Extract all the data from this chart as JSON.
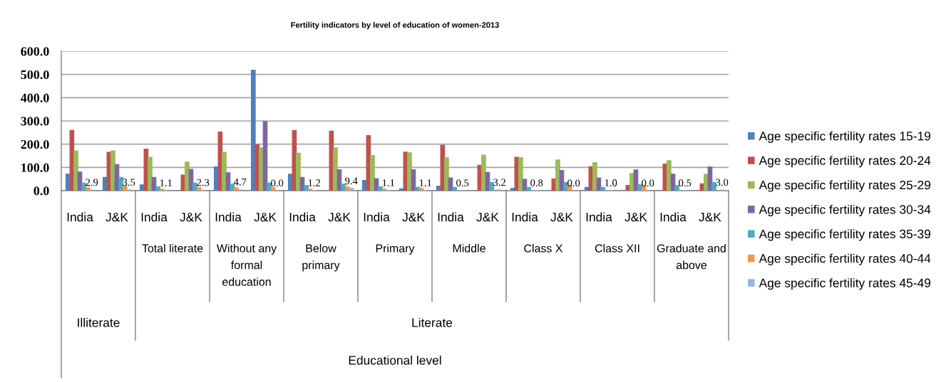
{
  "chart_data": {
    "type": "bar",
    "title": "Fertility indicators by level of education of women-2013",
    "categories": [
      "India",
      "J&K",
      "India",
      "J&K",
      "India",
      "J&K",
      "India",
      "J&K",
      "India",
      "J&K",
      "India",
      "J&K",
      "India",
      "J&K",
      "India",
      "J&K",
      "India",
      "J&K"
    ],
    "annotations": [
      "Total literate",
      "Without any\nformal\neducation",
      "Below\nprimary",
      "Primary",
      "Middle",
      "Class X",
      "Class XII",
      "Graduate and\nabove",
      "Illiterate",
      "Literate",
      "Educational level"
    ],
    "series": [
      {
        "name": "Age specific fertility rates 15-19",
        "color": "#4f81bd",
        "values": [
          71,
          57,
          25,
          0,
          102,
          519,
          71,
          0,
          44,
          8,
          20,
          0,
          10,
          0,
          14,
          0,
          0,
          0
        ]
      },
      {
        "name": "Age specific fertility rates 20-24",
        "color": "#c0504d",
        "values": [
          259,
          165,
          179,
          67,
          252,
          198,
          259,
          256,
          237,
          166,
          196,
          109,
          144,
          50,
          103,
          23,
          115,
          30
        ]
      },
      {
        "name": "Age specific fertility rates 25-29",
        "color": "#9bbb59",
        "values": [
          171,
          171,
          144,
          123,
          165,
          184,
          161,
          184,
          151,
          163,
          142,
          153,
          142,
          132,
          121,
          74,
          129,
          70
        ]
      },
      {
        "name": "Age specific fertility rates 30-34",
        "color": "#8064a2",
        "values": [
          80,
          112,
          57,
          92,
          77,
          298,
          57,
          90,
          52,
          90,
          55,
          79,
          49,
          87,
          55,
          89,
          71,
          102
        ]
      },
      {
        "name": "Age specific fertility rates 35-39",
        "color": "#4bacc6",
        "values": [
          33,
          57,
          17,
          33,
          28,
          33,
          22,
          28,
          17,
          14,
          14,
          35,
          14,
          35,
          14,
          26,
          23,
          35
        ]
      },
      {
        "name": "Age specific fertility rates 40-44",
        "color": "#f79646",
        "values": [
          13,
          22,
          7,
          13,
          13,
          13,
          7,
          17,
          7,
          10,
          0,
          3,
          0,
          23,
          0,
          23,
          0,
          0
        ]
      },
      {
        "name": "Age specific fertility rates 45-49",
        "color": "#98b4dc",
        "values": [
          2.9,
          3.5,
          1.1,
          2.3,
          4.7,
          0.0,
          1.2,
          9.4,
          1.1,
          1.1,
          0.5,
          3.2,
          0.8,
          0.0,
          1.0,
          0.0,
          0.5,
          3.0
        ],
        "value_labels": [
          "2.9",
          "3.5",
          "1.1",
          "2.3",
          "4.7",
          "0.0",
          "1.2",
          "9.4",
          "1.1",
          "1.1",
          "0.5",
          "3.2",
          "0.8",
          "0.0",
          "1.0",
          "0.0",
          "0.5",
          "3.0"
        ]
      }
    ],
    "ylim": [
      0,
      600
    ],
    "yticks": [
      {
        "value": 0,
        "label": "0.0"
      },
      {
        "value": 100,
        "label": "100.0"
      },
      {
        "value": 200,
        "label": "200.0"
      },
      {
        "value": 300,
        "label": "300.0"
      },
      {
        "value": 400,
        "label": "400.0"
      },
      {
        "value": 500,
        "label": "500.0"
      },
      {
        "value": 600,
        "label": "600.0"
      }
    ],
    "grid": "y",
    "legend": "right"
  }
}
